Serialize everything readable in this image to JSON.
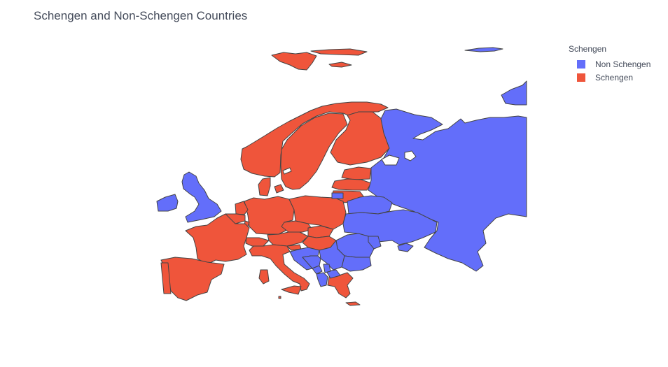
{
  "title": "Schengen and Non-Schengen Countries",
  "legend": {
    "title": "Schengen",
    "items": [
      {
        "label": "Non Schengen",
        "color": "#636efa",
        "key": "non_schengen"
      },
      {
        "label": "Schengen",
        "color": "#ef553b",
        "key": "schengen"
      }
    ]
  },
  "map": {
    "region": "europe",
    "border_color": "#444444",
    "countries": {
      "Iceland": "Schengen",
      "Norway": "Schengen",
      "Sweden": "Schengen",
      "Finland": "Schengen",
      "Estonia": "Schengen",
      "Latvia": "Schengen",
      "Lithuania": "Schengen",
      "Denmark": "Schengen",
      "Germany": "Schengen",
      "Poland": "Schengen",
      "Netherlands": "Schengen",
      "Belgium": "Schengen",
      "Luxembourg": "Schengen",
      "France": "Schengen",
      "Switzerland": "Schengen",
      "Austria": "Schengen",
      "Czechia": "Schengen",
      "Slovakia": "Schengen",
      "Hungary": "Schengen",
      "Slovenia": "Schengen",
      "Italy": "Schengen",
      "Spain": "Schengen",
      "Portugal": "Schengen",
      "Greece": "Schengen",
      "Malta": "Schengen",
      "United Kingdom": "Non Schengen",
      "Ireland": "Non Schengen",
      "Russia": "Non Schengen",
      "Belarus": "Non Schengen",
      "Ukraine": "Non Schengen",
      "Moldova": "Non Schengen",
      "Romania": "Non Schengen",
      "Bulgaria": "Non Schengen",
      "Serbia": "Non Schengen",
      "Croatia": "Non Schengen",
      "Bosnia and Herzegovina": "Non Schengen",
      "Montenegro": "Non Schengen",
      "Albania": "Non Schengen",
      "North Macedonia": "Non Schengen",
      "Kosovo": "Non Schengen"
    }
  }
}
